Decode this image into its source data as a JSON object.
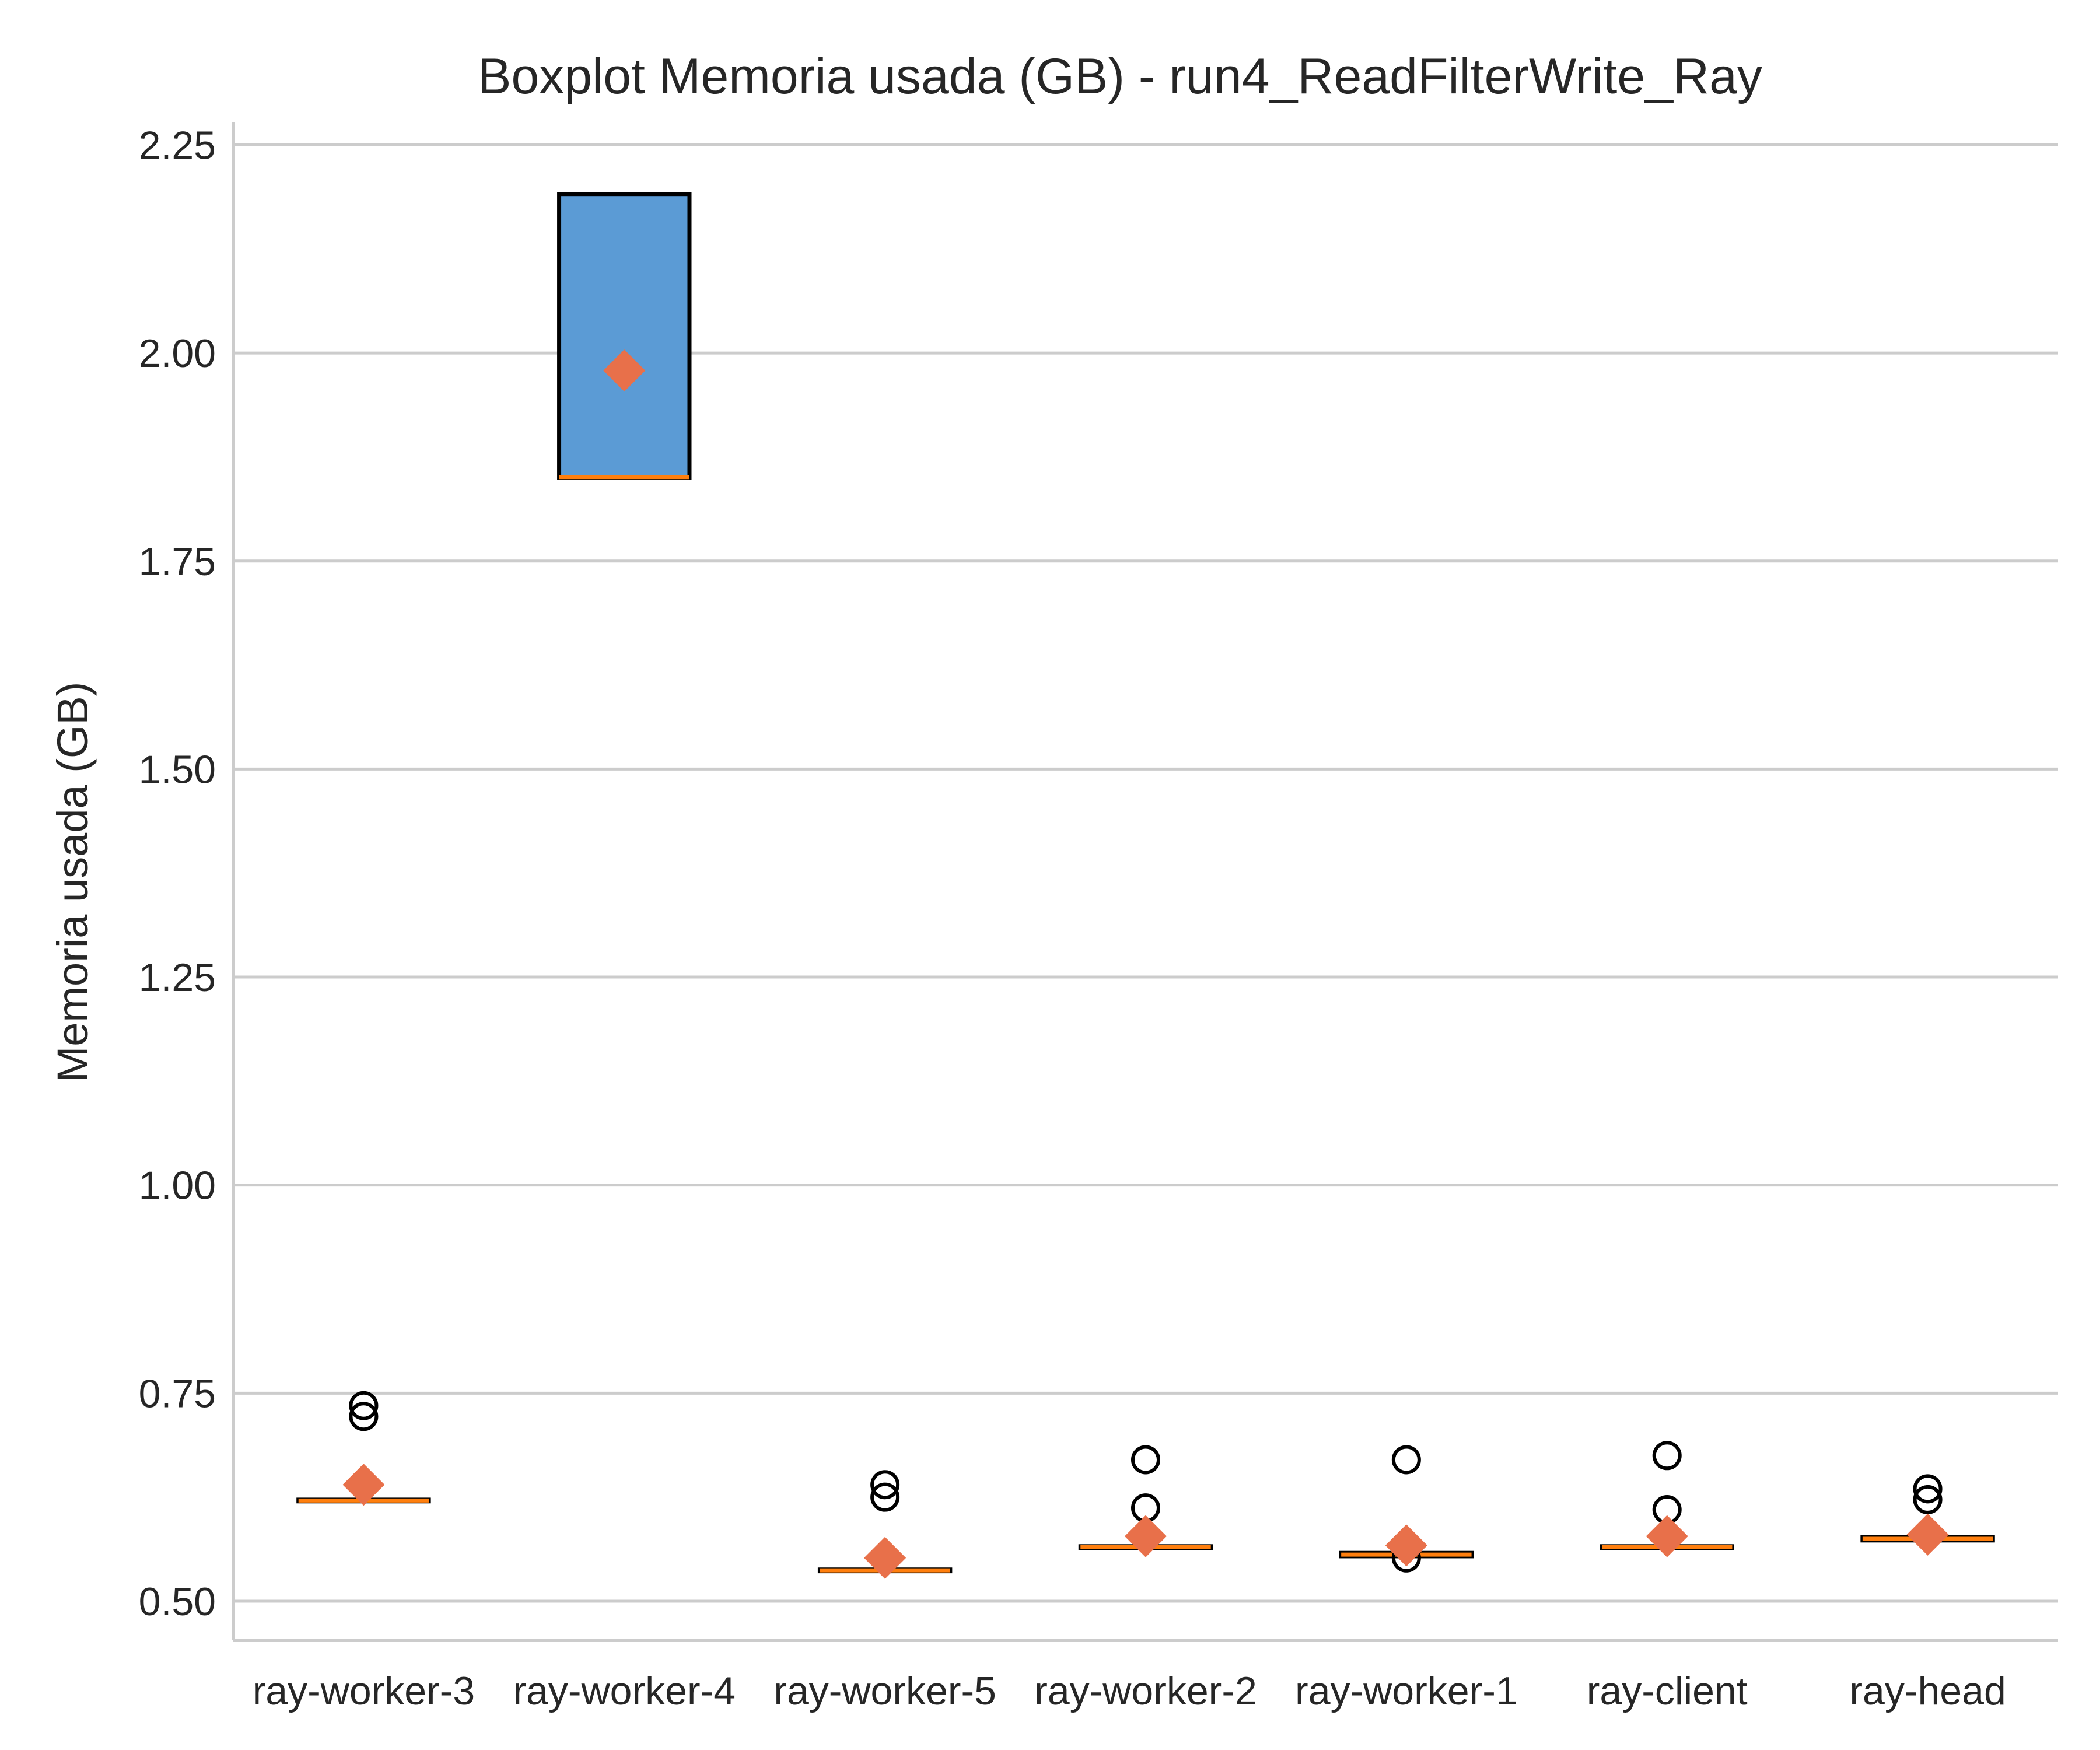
{
  "chart_data": {
    "type": "box",
    "title": "Boxplot Memoria usada (GB) - run4_ReadFilterWrite_Ray",
    "xlabel": "",
    "ylabel": "Memoria usada (GB)",
    "ylim": [
      0.453,
      2.277
    ],
    "yticks": [
      "0.50",
      "0.75",
      "1.00",
      "1.25",
      "1.50",
      "1.75",
      "2.00",
      "2.25"
    ],
    "grid": "horizontal",
    "colors": {
      "box_fill": "#5b9bd5",
      "box_edge": "#000000",
      "median": "#ff7f0e",
      "mean": "#e8704a",
      "grid": "#cccccc",
      "axis": "#cccccc"
    },
    "categories": [
      "ray-worker-3",
      "ray-worker-4",
      "ray-worker-5",
      "ray-worker-2",
      "ray-worker-1",
      "ray-client",
      "ray-head"
    ],
    "boxes": [
      {
        "q1": 0.62,
        "median": 0.621,
        "q3": 0.622,
        "whisker_low": 0.62,
        "whisker_high": 0.622,
        "mean": 0.64,
        "outliers": [
          0.735,
          0.722
        ]
      },
      {
        "q1": 1.85,
        "median": 1.851,
        "q3": 2.191,
        "whisker_low": 1.85,
        "whisker_high": 2.191,
        "mean": 1.979,
        "outliers": []
      },
      {
        "q1": 0.536,
        "median": 0.537,
        "q3": 0.538,
        "whisker_low": 0.536,
        "whisker_high": 0.538,
        "mean": 0.552,
        "outliers": [
          0.64,
          0.625
        ]
      },
      {
        "q1": 0.564,
        "median": 0.565,
        "q3": 0.566,
        "whisker_low": 0.564,
        "whisker_high": 0.566,
        "mean": 0.578,
        "outliers": [
          0.67,
          0.612
        ]
      },
      {
        "q1": 0.554,
        "median": 0.556,
        "q3": 0.558,
        "whisker_low": 0.554,
        "whisker_high": 0.558,
        "mean": 0.567,
        "outliers": [
          0.67,
          0.552
        ]
      },
      {
        "q1": 0.564,
        "median": 0.565,
        "q3": 0.566,
        "whisker_low": 0.564,
        "whisker_high": 0.566,
        "mean": 0.578,
        "outliers": [
          0.675,
          0.61
        ]
      },
      {
        "q1": 0.573,
        "median": 0.575,
        "q3": 0.577,
        "whisker_low": 0.573,
        "whisker_high": 0.577,
        "mean": 0.58,
        "outliers": [
          0.635,
          0.622
        ]
      }
    ]
  }
}
